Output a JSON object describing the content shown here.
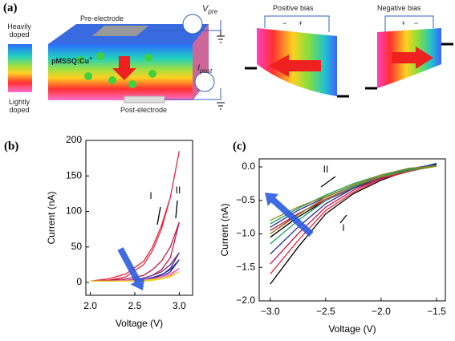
{
  "panel_a": {
    "label": "(a)",
    "heavily_doped": "Heavily doped",
    "lightly_doped": "Lightly doped",
    "pre_electrode": "Pre-electrode",
    "post_electrode": "Post-electrode",
    "material": {
      "text": "pMSSQ:Cu",
      "superscript": "+"
    },
    "v_pre": {
      "symbol": "V",
      "subscript": "pre"
    },
    "i_post": {
      "symbol": "I",
      "subscript": "post"
    },
    "positive_bias": {
      "title": "Positive bias",
      "left_sign": "−",
      "right_sign": "+"
    },
    "negative_bias": {
      "title": "Negative bias",
      "left_sign": "+",
      "right_sign": "−"
    }
  },
  "chart_data": [
    {
      "type": "line",
      "panel_label": "(b)",
      "x_label": "Voltage (V)",
      "y_label": "Current (nA)",
      "x": [
        2.0,
        2.2,
        2.4,
        2.6,
        2.7,
        2.8,
        2.9,
        3.0,
        2.9,
        2.8,
        2.7,
        2.6,
        2.4,
        2.2,
        2.0
      ],
      "xlim": [
        1.95,
        3.15
      ],
      "ylim": [
        -18,
        200
      ],
      "xticks": [
        {
          "value": 2,
          "label": "2.0"
        },
        2.5,
        {
          "value": 3,
          "label": "3.0"
        }
      ],
      "yticks": [
        0,
        50,
        100,
        150,
        200
      ],
      "annotations": [
        "I",
        "II"
      ],
      "series": [
        {
          "color": "#e8283c",
          "values": [
            2,
            3,
            8,
            25,
            45,
            75,
            120,
            185,
            120,
            80,
            50,
            30,
            12,
            5,
            2
          ]
        },
        {
          "color": "#c0184a",
          "values": [
            2,
            2,
            3,
            6,
            10,
            18,
            35,
            85,
            50,
            30,
            18,
            10,
            5,
            3,
            2
          ]
        },
        {
          "color": "#6a2a8a",
          "values": [
            2,
            2,
            2,
            4,
            6,
            10,
            20,
            42,
            25,
            15,
            10,
            6,
            3,
            2,
            2
          ]
        },
        {
          "color": "#2030a0",
          "values": [
            2,
            2,
            2,
            3,
            5,
            8,
            15,
            32,
            18,
            11,
            7,
            4,
            3,
            2,
            2
          ]
        },
        {
          "color": "#ff60c0",
          "values": [
            2,
            2,
            2,
            3,
            4,
            6,
            10,
            20,
            12,
            8,
            5,
            4,
            3,
            2,
            2
          ]
        },
        {
          "color": "#e8d020",
          "values": [
            2,
            2,
            2,
            2,
            3,
            5,
            8,
            15,
            9,
            6,
            4,
            3,
            2,
            2,
            2
          ]
        }
      ]
    },
    {
      "type": "line",
      "panel_label": "(c)",
      "x_label": "Voltage (V)",
      "y_label": "Current (nA)",
      "x": [
        -3.0,
        -2.75,
        -2.5,
        -2.25,
        -2.0,
        -1.75,
        -1.5,
        -1.75,
        -2.0,
        -2.25,
        -2.5,
        -2.75,
        -3.0
      ],
      "xlim": [
        -3.1,
        -1.42
      ],
      "ylim": [
        -2.0,
        0.12
      ],
      "xticks": [
        {
          "value": -3,
          "label": "−3.0"
        },
        {
          "value": -2.5,
          "label": "−2.5"
        },
        {
          "value": -2,
          "label": "−2.0"
        },
        {
          "value": -1.5,
          "label": "−1.5"
        }
      ],
      "yticks": [
        {
          "value": 0,
          "label": "0.0"
        },
        {
          "value": -0.5,
          "label": "−0.5"
        },
        {
          "value": -1,
          "label": "−1.0"
        },
        {
          "value": -1.5,
          "label": "−1.5"
        },
        {
          "value": -2,
          "label": "−2.0"
        }
      ],
      "annotations": [
        "II",
        "I"
      ],
      "series": [
        {
          "color": "#000000",
          "values": [
            -1.75,
            -1.2,
            -0.7,
            -0.4,
            -0.2,
            -0.05,
            0.05,
            -0.05,
            -0.15,
            -0.3,
            -0.5,
            -0.75,
            -1.05
          ]
        },
        {
          "color": "#e8283c",
          "values": [
            -1.6,
            -1.1,
            -0.65,
            -0.38,
            -0.18,
            -0.05,
            0.03,
            -0.06,
            -0.16,
            -0.3,
            -0.48,
            -0.7,
            -1.0
          ]
        },
        {
          "color": "#c0184a",
          "values": [
            -1.45,
            -1.0,
            -0.6,
            -0.35,
            -0.17,
            -0.04,
            0.02,
            -0.07,
            -0.18,
            -0.32,
            -0.5,
            -0.7,
            -0.95
          ]
        },
        {
          "color": "#2030a0",
          "values": [
            -1.3,
            -0.9,
            -0.55,
            -0.32,
            -0.15,
            -0.03,
            0.04,
            -0.05,
            -0.14,
            -0.28,
            -0.45,
            -0.65,
            -0.9
          ]
        },
        {
          "color": "#20a060",
          "values": [
            -1.15,
            -0.8,
            -0.5,
            -0.3,
            -0.14,
            -0.03,
            0.02,
            -0.04,
            -0.12,
            -0.25,
            -0.42,
            -0.62,
            -0.85
          ]
        },
        {
          "color": "#8a8a20",
          "values": [
            -1.0,
            -0.72,
            -0.45,
            -0.27,
            -0.12,
            -0.02,
            0.01,
            -0.06,
            -0.15,
            -0.28,
            -0.44,
            -0.6,
            -0.8
          ]
        }
      ]
    }
  ]
}
